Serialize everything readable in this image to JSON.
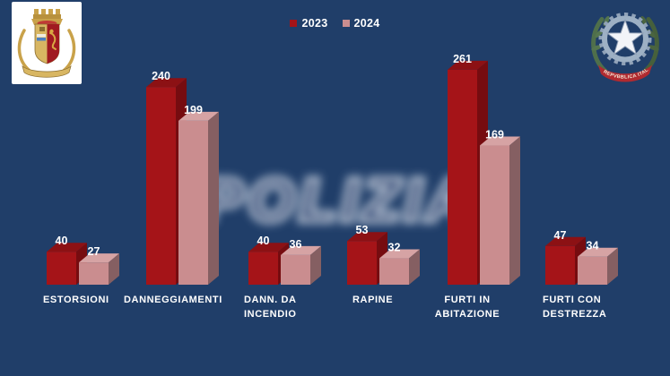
{
  "page": {
    "background_color": "#203e69"
  },
  "logos": {
    "left": "polizia-di-stato-crest",
    "right": "repubblica-italiana-emblem",
    "right_banner_text": "REPVBBLICA ITALIANA"
  },
  "watermark": {
    "text": "POLIZIA"
  },
  "chart_data": {
    "type": "bar",
    "style": "3d-clustered-column",
    "title": "",
    "xlabel": "",
    "ylabel": "",
    "grid": false,
    "legend_position": "top-center",
    "ylim": [
      0,
      280
    ],
    "categories": [
      [
        "ESTORSIONI"
      ],
      [
        "DANNEGGIAMENTI"
      ],
      [
        "DANN. DA",
        "INCENDIO"
      ],
      [
        "RAPINE"
      ],
      [
        "FURTI IN",
        "ABITAZIONE"
      ],
      [
        "FURTI CON",
        "DESTREZZA"
      ]
    ],
    "series": [
      {
        "name": "2023",
        "values": [
          40,
          240,
          40,
          53,
          261,
          47
        ],
        "colors": {
          "front": "#a51418",
          "top": "#8c1114",
          "side": "#760c10"
        }
      },
      {
        "name": "2024",
        "values": [
          27,
          199,
          36,
          32,
          169,
          34
        ],
        "colors": {
          "front": "#ca8d8f",
          "top": "#d6a3a4",
          "side": "#855f62"
        }
      }
    ],
    "value_label_color": "#ffffff",
    "category_label_color": "#ffffff"
  }
}
